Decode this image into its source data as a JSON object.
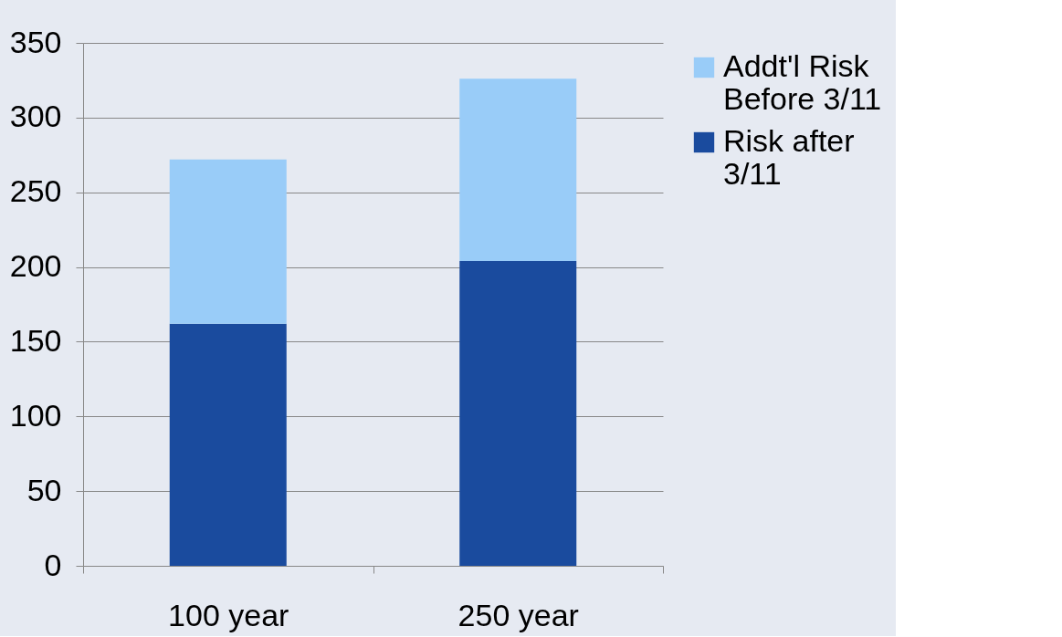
{
  "chart_data": {
    "type": "bar",
    "stacked": true,
    "categories": [
      "100 year",
      "250 year"
    ],
    "series": [
      {
        "name": "Risk after 3/11",
        "color": "#1a4b9e",
        "values": [
          162,
          204
        ]
      },
      {
        "name": "Addt'l Risk Before 3/11",
        "color": "#99ccf8",
        "values": [
          110,
          122
        ]
      }
    ],
    "ylim": [
      0,
      350
    ],
    "yticks": [
      0,
      50,
      100,
      150,
      200,
      250,
      300,
      350
    ],
    "grid": "y",
    "legend": "right"
  }
}
